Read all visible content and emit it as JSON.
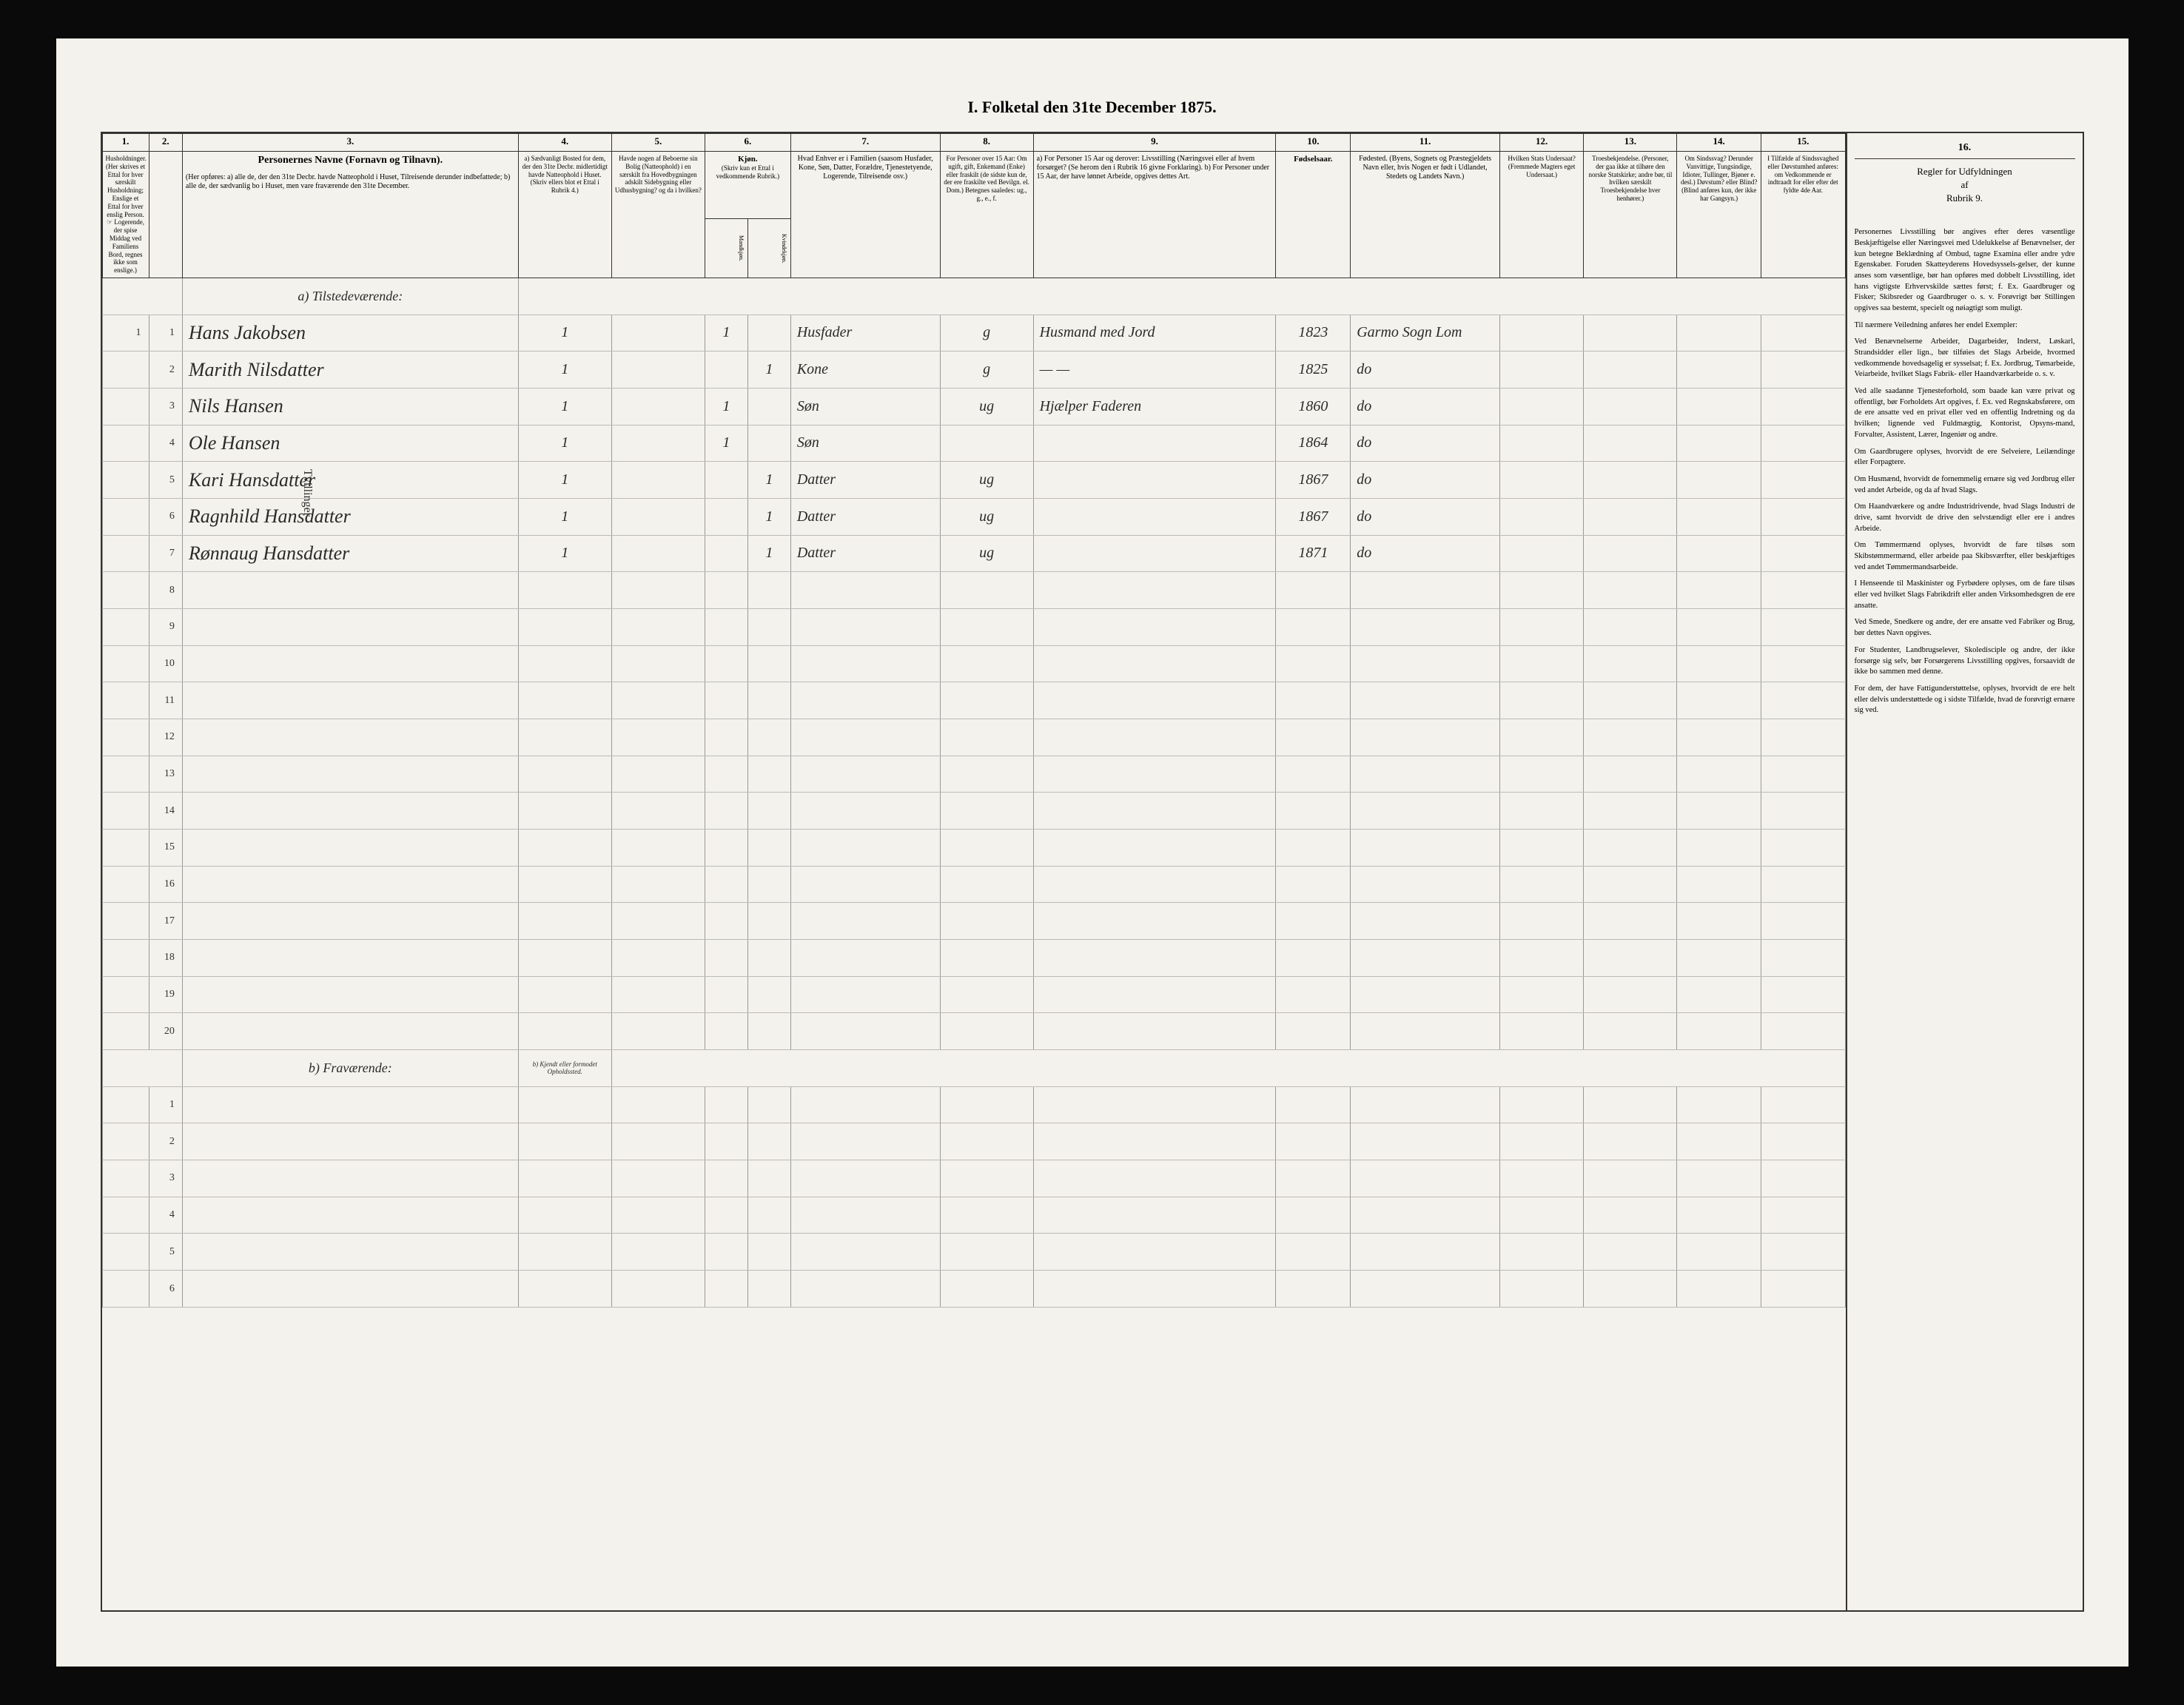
{
  "page_title": "I. Folketal den 31te December 1875.",
  "column_numbers": [
    "1.",
    "2.",
    "3.",
    "4.",
    "5.",
    "6.",
    "7.",
    "8.",
    "9.",
    "10.",
    "11.",
    "12.",
    "13.",
    "14.",
    "15.",
    "16."
  ],
  "headers": {
    "col1": "Husholdninger.\n(Her skrives et Ettal for hver særskilt Husholdning; Enslige et Ettal for hver enslig Person.\n☞ Logerende, der spise Middag ved Familiens Bord, regnes ikke som enslige.)",
    "col3_title": "Personernes Navne (Fornavn og Tilnavn).",
    "col3_sub": "(Her opføres:\na) alle de, der den 31te Decbr. havde Natteophold i Huset, Tilreisende derunder indbefattede;\nb) alle de, der sædvanlig bo i Huset, men vare fraværende den 31te December.",
    "col4": "a) Sædvanligt Bosted for dem, der den 31te Decbr. midlertidigt havde Natteophold i Huset. (Skriv ellers blot et Ettal i Rubrik 4.)",
    "col5": "Havde nogen af Beboerne sin Bolig (Natteophold) i en særskilt fra Hovedbygningen adskilt Sidebygning eller Udhusbygning? og da i hvilken?",
    "col6_title": "Kjøn.",
    "col6_sub": "(Skriv kun et Ettal i vedkommende Rubrik.)",
    "col6a": "Mandkjøn.",
    "col6b": "Kvindekjøn.",
    "col7": "Hvad Enhver er i Familien\n(saasom Husfader, Kone, Søn, Datter, Forældre, Tjenestetyende, Logerende, Tilreisende osv.)",
    "col8": "For Personer over 15 Aar: Om ugift, gift, Enkemand (Enke) eller fraskilt\n(de sidste kun de, der ere fraskilte ved Bevilgn. el. Dom.) Betegnes saaledes: ug., g., e., f.",
    "col9": "a) For Personer 15 Aar og derover: Livsstilling (Næringsvei eller af hvem forsørget? (Se herom den i Rubrik 16 givne Forklaring).\nb) For Personer under 15 Aar, der have lønnet Arbeide, opgives dettes Art.",
    "col10": "Fødselsaar.",
    "col11": "Fødested.\n(Byens, Sognets og Præstegjeldets Navn eller, hvis Nogen er født i Udlandet, Stedets og Landets Navn.)",
    "col12": "Hvilken Stats Undersaat?\n(Fremmede Magters eget Undersaat.)",
    "col13": "Troesbekjendelse.\n(Personer, der gaa ikke at tilhøre den norske Statskirke; andre bør, til hvilken særskilt Troesbekjendelse hver henhører.)",
    "col14": "Om Sindssvag? Derunder Vanvittige, Tungsindige, Idioter, Tullinger, Bjøner e. desl.) Døvstum? eller Blind? (Blind anføres kun, der ikke har Gangsyn.)",
    "col15": "I Tilfælde af Sindssvaghed eller Døvstumhed anføres: om Vedkommende er indtraadt for eller efter det fyldte 4de Aar."
  },
  "section_a": "a) Tilstedeværende:",
  "section_b": "b) Fraværende:",
  "section_b_col4": "b) Kjendt eller formodet Opholdssted.",
  "twin_label": "Tvillinger",
  "notes_header": "Regler for Udfyldningen\naf\nRubrik 9.",
  "entries": [
    {
      "num": "1",
      "hh": "1",
      "name": "Hans Jakobsen",
      "col4": "1",
      "sex_m": "1",
      "sex_f": "",
      "relation": "Husfader",
      "marital": "g",
      "occupation": "Husmand med Jord",
      "birth_year": "1823",
      "birthplace": "Garmo Sogn Lom"
    },
    {
      "num": "2",
      "hh": "",
      "name": "Marith Nilsdatter",
      "col4": "1",
      "sex_m": "",
      "sex_f": "1",
      "relation": "Kone",
      "marital": "g",
      "occupation": "— —",
      "birth_year": "1825",
      "birthplace": "do"
    },
    {
      "num": "3",
      "hh": "",
      "name": "Nils Hansen",
      "col4": "1",
      "sex_m": "1",
      "sex_f": "",
      "relation": "Søn",
      "marital": "ug",
      "occupation": "Hjælper Faderen",
      "birth_year": "1860",
      "birthplace": "do"
    },
    {
      "num": "4",
      "hh": "",
      "name": "Ole Hansen",
      "col4": "1",
      "sex_m": "1",
      "sex_f": "",
      "relation": "Søn",
      "marital": "",
      "occupation": "",
      "birth_year": "1864",
      "birthplace": "do"
    },
    {
      "num": "5",
      "hh": "",
      "name": "Kari Hansdatter",
      "col4": "1",
      "sex_m": "",
      "sex_f": "1",
      "relation": "Datter",
      "marital": "ug",
      "occupation": "",
      "birth_year": "1867",
      "birthplace": "do"
    },
    {
      "num": "6",
      "hh": "",
      "name": "Ragnhild Hansdatter",
      "col4": "1",
      "sex_m": "",
      "sex_f": "1",
      "relation": "Datter",
      "marital": "ug",
      "occupation": "",
      "birth_year": "1867",
      "birthplace": "do"
    },
    {
      "num": "7",
      "hh": "",
      "name": "Rønnaug Hansdatter",
      "col4": "1",
      "sex_m": "",
      "sex_f": "1",
      "relation": "Datter",
      "marital": "ug",
      "occupation": "",
      "birth_year": "1871",
      "birthplace": "do"
    }
  ],
  "blank_rows_a": [
    "8",
    "9",
    "10",
    "11",
    "12",
    "13",
    "14",
    "15",
    "16",
    "17",
    "18",
    "19",
    "20"
  ],
  "blank_rows_b": [
    "1",
    "2",
    "3",
    "4",
    "5",
    "6"
  ],
  "notes": [
    "Personernes Livsstilling bør angives efter deres væsentlige Beskjæftigelse eller Næringsvei med Udelukkelse af Benævnelser, der kun betegne Beklædning af Ombud, tagne Examina eller andre ydre Egenskaber. Foruden Skatteyderens Hovedsyssels-gelser, der kunne anses som væsentlige, bør han opføres med dobbelt Livsstilling, idet hans vigtigste Erhvervskilde sættes først; f. Ex. Gaardbruger og Fisker; Skibsreder og Gaardbruger o. s. v. Forøvrigt bør Stillingen opgives saa bestemt, specielt og nøiagtigt som muligt.",
    "Til nærmere Veiledning anføres her endel Exempler:",
    "Ved Benævnelserne Arbeider, Dagarbeider, Inderst, Løskarl, Strandsidder eller lign., bør tilføies det Slags Arbeide, hvormed vedkommende hovedsagelig er sysselsat; f. Ex. Jordbrug, Tømarbeide, Veiarbeide, hvilket Slags Fabrik- eller Haandværkarbeide o. s. v.",
    "Ved alle saadanne Tjenesteforhold, som baade kan være privat og offentligt, bør Forholdets Art opgives, f. Ex. ved Regnskabsførere, om de ere ansatte ved en privat eller ved en offentlig Indretning og da hvilken; lignende ved Fuldmægtig, Kontorist, Opsyns-mand, Forvalter, Assistent, Lærer, Ingeniør og andre.",
    "Om Gaardbrugere oplyses, hvorvidt de ere Selveiere, Leilændinge eller Forpagtere.",
    "Om Husmænd, hvorvidt de fornemmelig ernære sig ved Jordbrug eller ved andet Arbeide, og da af hvad Slags.",
    "Om Haandværkere og andre Industridrivende, hvad Slags Industri de drive, samt hvorvidt de drive den selvstændigt eller ere i andres Arbeide.",
    "Om Tømmermænd oplyses, hvorvidt de fare tilsøs som Skibstømmermænd, eller arbeide paa Skibsværfter, eller beskjæftiges ved andet Tømmermandsarbeide.",
    "I Henseende til Maskinister og Fyrbødere oplyses, om de fare tilsøs eller ved hvilket Slags Fabrikdrift eller anden Virksomhedsgren de ere ansatte.",
    "Ved Smede, Snedkere og andre, der ere ansatte ved Fabriker og Brug, bør dettes Navn opgives.",
    "For Studenter, Landbrugselever, Skoledisciple og andre, der ikke forsørge sig selv, bør Forsørgerens Livsstilling opgives, forsaavidt de ikke bo sammen med denne.",
    "For dem, der have Fattigunderstøttelse, oplyses, hvorvidt de ere helt eller delvis understøttede og i sidste Tilfælde, hvad de forøvrigt ernære sig ved."
  ],
  "colors": {
    "page_bg": "#f4f2ec",
    "border": "#333333",
    "text": "#2a2a2a",
    "frame_bg": "#0a0a0a"
  }
}
